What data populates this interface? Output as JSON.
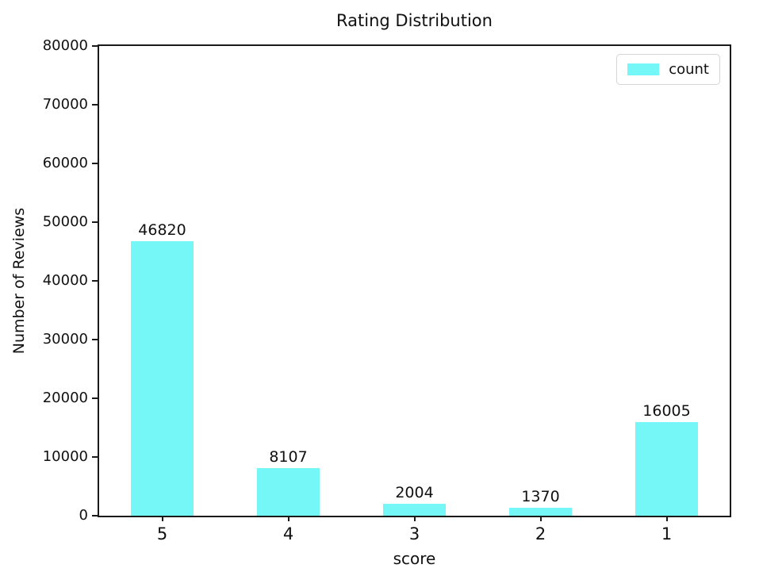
{
  "chart_data": {
    "type": "bar",
    "title": "Rating Distribution",
    "xlabel": "score",
    "ylabel": "Number of Reviews",
    "categories": [
      "5",
      "4",
      "3",
      "2",
      "1"
    ],
    "series": [
      {
        "name": "count",
        "values": [
          46820,
          8107,
          2004,
          1370,
          16005
        ]
      }
    ],
    "bar_value_labels": [
      "46820",
      "8107",
      "2004",
      "1370",
      "16005"
    ],
    "ylim": [
      0,
      80000
    ],
    "yticks": [
      0,
      10000,
      20000,
      30000,
      40000,
      50000,
      60000,
      70000,
      80000
    ],
    "grid": false,
    "legend": {
      "position": "upper right",
      "entries": [
        "count"
      ]
    },
    "colors": {
      "bar": "#76f7f7",
      "axis": "#1a1a1a",
      "text": "#111111",
      "background": "#ffffff",
      "legend_border": "#d5d5d5"
    },
    "bar_width_fraction": 0.5
  }
}
